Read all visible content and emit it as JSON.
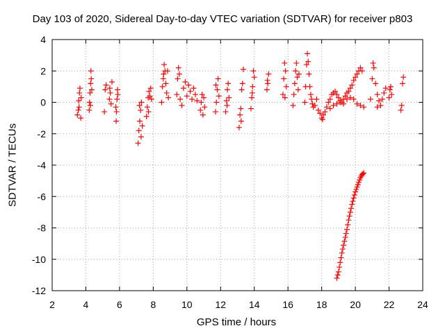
{
  "chart_data": {
    "type": "scatter",
    "title": "Day 103 of 2020, Sidereal Day-to-day VTEC variation (SDTVAR) for receiver p803",
    "xlabel": "GPS time / hours",
    "ylabel": "SDTVAR / TECUs",
    "xlim": [
      2,
      24
    ],
    "ylim": [
      -12,
      4
    ],
    "xticks": [
      "2",
      "4",
      "6",
      "8",
      "10",
      "12",
      "14",
      "16",
      "18",
      "20",
      "22",
      "24"
    ],
    "yticks": [
      "4",
      "2",
      "0",
      "-2",
      "-4",
      "-6",
      "-8",
      "-10",
      "-12"
    ],
    "grid": true,
    "marker": "+",
    "color": "#ff0000",
    "series": [
      {
        "name": "SDTVAR",
        "points": [
          [
            3.5,
            -0.8
          ],
          [
            3.55,
            -0.5
          ],
          [
            3.6,
            -0.3
          ],
          [
            3.62,
            0.6
          ],
          [
            3.65,
            0.9
          ],
          [
            3.7,
            -1.0
          ],
          [
            3.72,
            0.3
          ],
          [
            3.58,
            0.1
          ],
          [
            4.2,
            -0.5
          ],
          [
            4.22,
            0.0
          ],
          [
            4.25,
            0.6
          ],
          [
            4.28,
            1.2
          ],
          [
            4.3,
            2.0
          ],
          [
            4.32,
            1.5
          ],
          [
            4.27,
            -0.2
          ],
          [
            4.35,
            0.8
          ],
          [
            5.1,
            -0.6
          ],
          [
            5.15,
            0.8
          ],
          [
            5.2,
            1.1
          ],
          [
            5.4,
            0.2
          ],
          [
            5.45,
            0.6
          ],
          [
            5.5,
            -0.1
          ],
          [
            5.55,
            1.3
          ],
          [
            5.42,
            0.9
          ],
          [
            5.8,
            -1.2
          ],
          [
            5.82,
            -0.6
          ],
          [
            5.85,
            0.2
          ],
          [
            5.88,
            0.8
          ],
          [
            5.9,
            0.5
          ],
          [
            5.78,
            -0.3
          ],
          [
            7.1,
            -2.6
          ],
          [
            7.15,
            -1.8
          ],
          [
            7.2,
            -1.2
          ],
          [
            7.25,
            -0.5
          ],
          [
            7.3,
            0.0
          ],
          [
            7.35,
            -1.5
          ],
          [
            7.18,
            -0.2
          ],
          [
            7.28,
            -2.2
          ],
          [
            7.6,
            -0.9
          ],
          [
            7.65,
            -0.3
          ],
          [
            7.7,
            0.3
          ],
          [
            7.75,
            0.7
          ],
          [
            7.8,
            0.4
          ],
          [
            7.85,
            0.9
          ],
          [
            7.9,
            0.2
          ],
          [
            7.72,
            -0.6
          ],
          [
            8.5,
            0.0
          ],
          [
            8.55,
            1.0
          ],
          [
            8.6,
            1.5
          ],
          [
            8.65,
            2.4
          ],
          [
            8.7,
            2.0
          ],
          [
            8.75,
            1.2
          ],
          [
            8.8,
            0.6
          ],
          [
            8.85,
            2.0
          ],
          [
            8.9,
            0.3
          ],
          [
            8.62,
            1.8
          ],
          [
            9.4,
            0.5
          ],
          [
            9.45,
            1.5
          ],
          [
            9.5,
            2.2
          ],
          [
            9.55,
            1.8
          ],
          [
            9.6,
            0.2
          ],
          [
            9.7,
            -0.2
          ],
          [
            9.8,
            0.9
          ],
          [
            9.9,
            1.3
          ],
          [
            10.0,
            0.4
          ],
          [
            10.1,
            1.1
          ],
          [
            10.2,
            0.7
          ],
          [
            10.3,
            0.2
          ],
          [
            10.4,
            0.9
          ],
          [
            10.5,
            0.5
          ],
          [
            10.6,
            0.1
          ],
          [
            10.8,
            -0.5
          ],
          [
            10.85,
            0.0
          ],
          [
            10.9,
            0.5
          ],
          [
            10.95,
            -0.8
          ],
          [
            11.0,
            0.3
          ],
          [
            11.05,
            -0.3
          ],
          [
            11.7,
            -0.6
          ],
          [
            11.75,
            0.0
          ],
          [
            11.8,
            0.8
          ],
          [
            11.85,
            1.5
          ],
          [
            11.9,
            0.4
          ],
          [
            11.72,
            1.1
          ],
          [
            12.3,
            -0.6
          ],
          [
            12.35,
            0.1
          ],
          [
            12.4,
            0.8
          ],
          [
            12.45,
            1.2
          ],
          [
            12.5,
            0.3
          ],
          [
            12.38,
            -0.2
          ],
          [
            13.1,
            -1.6
          ],
          [
            13.15,
            -0.8
          ],
          [
            13.2,
            -0.4
          ],
          [
            13.25,
            0.8
          ],
          [
            13.3,
            1.2
          ],
          [
            13.35,
            2.1
          ],
          [
            13.22,
            -1.2
          ],
          [
            13.8,
            -0.4
          ],
          [
            13.85,
            0.3
          ],
          [
            13.9,
            1.0
          ],
          [
            13.95,
            2.0
          ],
          [
            14.0,
            1.6
          ],
          [
            13.88,
            0.6
          ],
          [
            14.75,
            0.8
          ],
          [
            14.8,
            1.2
          ],
          [
            14.85,
            1.8
          ],
          [
            14.78,
            1.4
          ],
          [
            15.7,
            0.5
          ],
          [
            15.75,
            1.5
          ],
          [
            15.8,
            2.5
          ],
          [
            15.85,
            2.0
          ],
          [
            15.9,
            1.0
          ],
          [
            15.82,
            0.3
          ],
          [
            16.3,
            -0.2
          ],
          [
            16.35,
            0.5
          ],
          [
            16.4,
            1.2
          ],
          [
            16.45,
            2.0
          ],
          [
            16.5,
            2.5
          ],
          [
            16.55,
            1.6
          ],
          [
            16.6,
            0.8
          ],
          [
            16.65,
            1.8
          ],
          [
            17.0,
            0.0
          ],
          [
            17.05,
            1.0
          ],
          [
            17.1,
            2.4
          ],
          [
            17.15,
            3.1
          ],
          [
            17.2,
            2.6
          ],
          [
            17.25,
            1.8
          ],
          [
            17.3,
            1.0
          ],
          [
            17.35,
            0.5
          ],
          [
            17.4,
            0.2
          ],
          [
            17.45,
            -0.1
          ],
          [
            17.5,
            -0.3
          ],
          [
            17.6,
            -0.2
          ],
          [
            17.7,
            0.2
          ],
          [
            17.8,
            -0.5
          ],
          [
            17.9,
            -0.7
          ],
          [
            18.0,
            -1.0
          ],
          [
            18.05,
            -1.1
          ],
          [
            18.1,
            -0.8
          ],
          [
            18.2,
            -0.6
          ],
          [
            18.3,
            -0.3
          ],
          [
            18.4,
            0.0
          ],
          [
            18.5,
            0.2
          ],
          [
            18.6,
            0.5
          ],
          [
            18.7,
            0.6
          ],
          [
            18.8,
            0.7
          ],
          [
            18.9,
            0.5
          ],
          [
            19.0,
            0.3
          ],
          [
            19.1,
            0.1
          ],
          [
            19.2,
            0.0
          ],
          [
            19.3,
            0.2
          ],
          [
            19.4,
            0.4
          ],
          [
            19.5,
            0.6
          ],
          [
            19.6,
            0.7
          ],
          [
            19.7,
            0.9
          ],
          [
            19.8,
            1.1
          ],
          [
            19.9,
            1.4
          ],
          [
            20.0,
            1.6
          ],
          [
            20.1,
            1.8
          ],
          [
            20.2,
            2.0
          ],
          [
            20.3,
            2.2
          ],
          [
            20.4,
            2.0
          ],
          [
            18.5,
            -0.4
          ],
          [
            18.7,
            -0.2
          ],
          [
            18.9,
            -0.1
          ],
          [
            19.1,
            0.0
          ],
          [
            19.3,
            -0.1
          ],
          [
            19.5,
            0.2
          ],
          [
            19.7,
            0.3
          ],
          [
            19.9,
            0.2
          ],
          [
            20.1,
            -0.1
          ],
          [
            20.3,
            -0.2
          ],
          [
            20.5,
            -0.3
          ],
          [
            20.9,
            0.2
          ],
          [
            21.0,
            1.5
          ],
          [
            21.05,
            2.5
          ],
          [
            21.1,
            2.2
          ],
          [
            21.2,
            1.2
          ],
          [
            21.3,
            0.5
          ],
          [
            21.4,
            0.1
          ],
          [
            21.5,
            -0.2
          ],
          [
            21.6,
            0.2
          ],
          [
            21.7,
            0.6
          ],
          [
            21.8,
            0.9
          ],
          [
            21.3,
            -0.3
          ],
          [
            22.0,
            0.3
          ],
          [
            22.05,
            0.8
          ],
          [
            22.1,
            1.0
          ],
          [
            22.15,
            0.5
          ],
          [
            22.7,
            -0.5
          ],
          [
            22.75,
            -0.2
          ],
          [
            22.8,
            1.2
          ],
          [
            22.85,
            1.6
          ],
          [
            18.9,
            -11.2
          ],
          [
            19.0,
            -10.8
          ],
          [
            19.1,
            -10.2
          ],
          [
            19.2,
            -9.6
          ],
          [
            19.3,
            -9.1
          ],
          [
            19.4,
            -8.6
          ],
          [
            19.5,
            -8.1
          ],
          [
            19.6,
            -7.5
          ],
          [
            19.7,
            -7.0
          ],
          [
            19.8,
            -6.5
          ],
          [
            19.9,
            -6.1
          ],
          [
            20.0,
            -5.7
          ],
          [
            20.1,
            -5.4
          ],
          [
            20.2,
            -5.1
          ],
          [
            20.3,
            -4.8
          ],
          [
            20.4,
            -4.6
          ],
          [
            20.5,
            -4.5
          ],
          [
            18.95,
            -11.0
          ],
          [
            19.05,
            -10.5
          ],
          [
            19.15,
            -9.9
          ],
          [
            19.25,
            -9.35
          ],
          [
            19.35,
            -8.85
          ],
          [
            19.45,
            -8.35
          ],
          [
            19.55,
            -7.8
          ],
          [
            19.65,
            -7.25
          ],
          [
            19.75,
            -6.75
          ],
          [
            19.85,
            -6.3
          ],
          [
            19.95,
            -5.9
          ],
          [
            20.05,
            -5.55
          ],
          [
            20.15,
            -5.25
          ],
          [
            20.25,
            -4.95
          ],
          [
            20.35,
            -4.7
          ],
          [
            20.45,
            -4.55
          ]
        ]
      }
    ]
  }
}
